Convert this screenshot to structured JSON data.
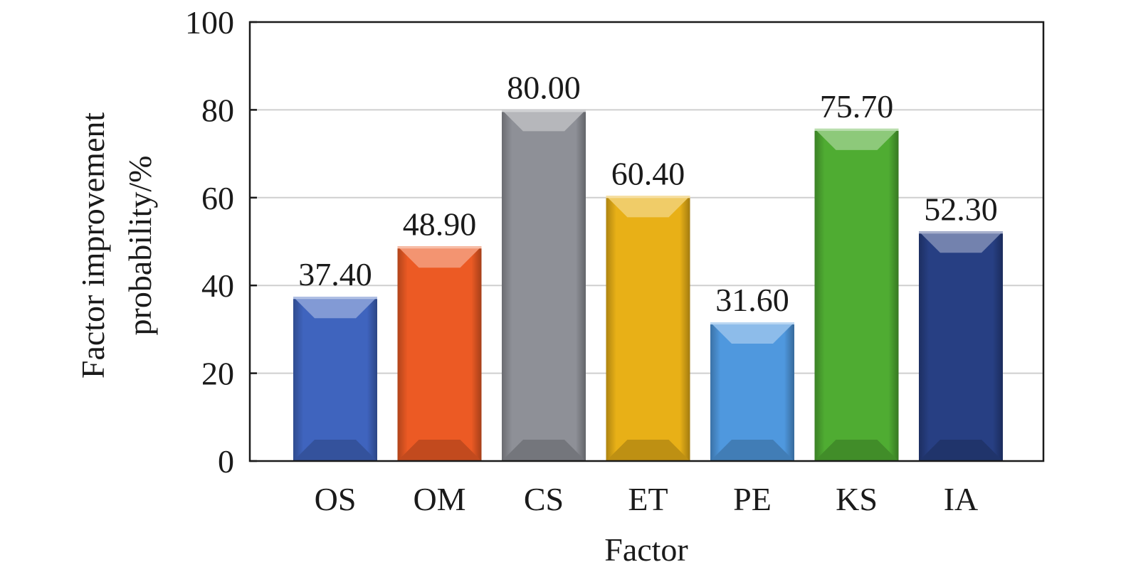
{
  "chart_data": {
    "type": "bar",
    "title": "",
    "xlabel": "Factor",
    "ylabel_lines": [
      "Factor improvement",
      "probability/%"
    ],
    "categories": [
      "OS",
      "OM",
      "CS",
      "ET",
      "PE",
      "KS",
      "IA"
    ],
    "values": [
      37.4,
      48.9,
      80.0,
      60.4,
      31.6,
      75.7,
      52.3
    ],
    "value_labels": [
      "37.40",
      "48.90",
      "80.00",
      "60.40",
      "31.60",
      "75.70",
      "52.30"
    ],
    "colors": [
      "#3f64be",
      "#ec5a24",
      "#8e9097",
      "#e8b017",
      "#4f98de",
      "#4fac32",
      "#273f83"
    ],
    "ylim": [
      0,
      100
    ],
    "yticks": [
      0,
      20,
      40,
      60,
      80,
      100
    ],
    "ytick_labels": [
      "0",
      "20",
      "40",
      "60",
      "80",
      "100"
    ],
    "grid": true,
    "legend": "none"
  }
}
